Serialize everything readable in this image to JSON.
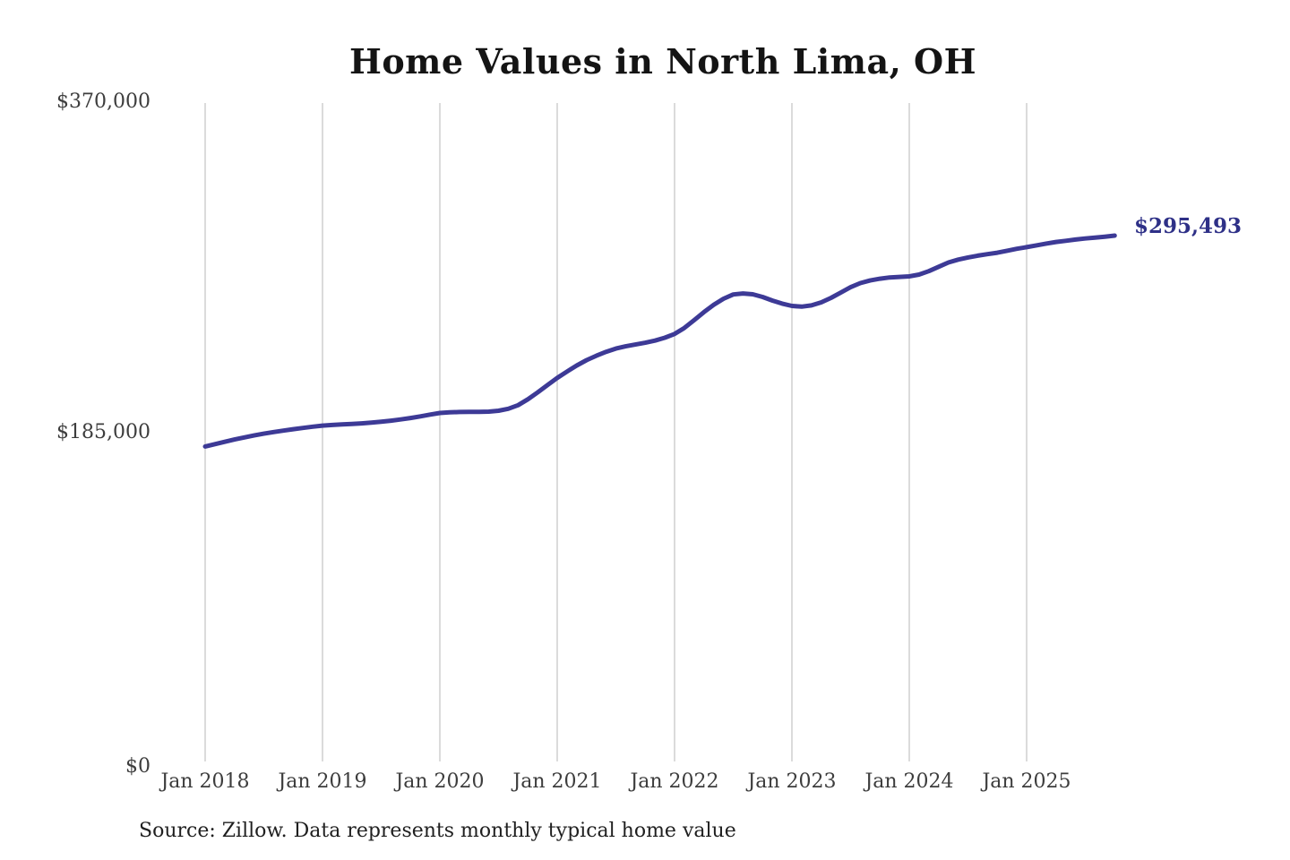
{
  "title": "Home Values in North Lima, OH",
  "source_note": "Source: Zillow. Data represents monthly typical home value",
  "end_value_label": "$295,493",
  "colors": {
    "line": "#3d3a96",
    "end_label": "#2e3087",
    "gridline": "#cfcfcf",
    "tick_text": "#3d3d3d",
    "title_text": "#141414",
    "source_text": "#1f1f1f",
    "background": "#ffffff"
  },
  "chart_data": {
    "type": "line",
    "title": "Home Values in North Lima, OH",
    "xlabel": "",
    "ylabel": "",
    "ylim": [
      0,
      370000
    ],
    "grid": "vertical-only",
    "legend": "none",
    "y_ticks": [
      {
        "label": "$370,000",
        "value": 370000
      },
      {
        "label": "$185,000",
        "value": 185000
      },
      {
        "label": "$0",
        "value": 0
      }
    ],
    "x_tick_labels": [
      "Jan 2018",
      "Jan 2019",
      "Jan 2020",
      "Jan 2021",
      "Jan 2022",
      "Jan 2023",
      "Jan 2024",
      "Jan 2025"
    ],
    "series": [
      {
        "name": "Monthly typical home value",
        "start": "Jan 2018",
        "frequency": "monthly",
        "final_value": 295493,
        "final_value_label": "$295,493",
        "values": [
          177000,
          178300,
          179600,
          180900,
          182100,
          183200,
          184200,
          185100,
          185900,
          186700,
          187400,
          188100,
          188700,
          189100,
          189400,
          189700,
          190000,
          190400,
          190900,
          191500,
          192200,
          193000,
          193900,
          194900,
          195800,
          196200,
          196400,
          196500,
          196500,
          196600,
          197100,
          198200,
          200200,
          203500,
          207400,
          211500,
          215500,
          219100,
          222500,
          225500,
          228000,
          230200,
          232000,
          233300,
          234300,
          235300,
          236500,
          238100,
          240200,
          243600,
          248000,
          252500,
          256600,
          260000,
          262400,
          263000,
          262500,
          261000,
          259000,
          257300,
          256000,
          255600,
          256300,
          258000,
          260500,
          263500,
          266500,
          268800,
          270300,
          271300,
          272000,
          272300,
          272600,
          273600,
          275500,
          278000,
          280400,
          282000,
          283200,
          284200,
          285100,
          285900,
          287000,
          288100,
          289000,
          290000,
          291000,
          291900,
          292600,
          293300,
          293900,
          294400,
          294900,
          295493
        ]
      }
    ]
  }
}
